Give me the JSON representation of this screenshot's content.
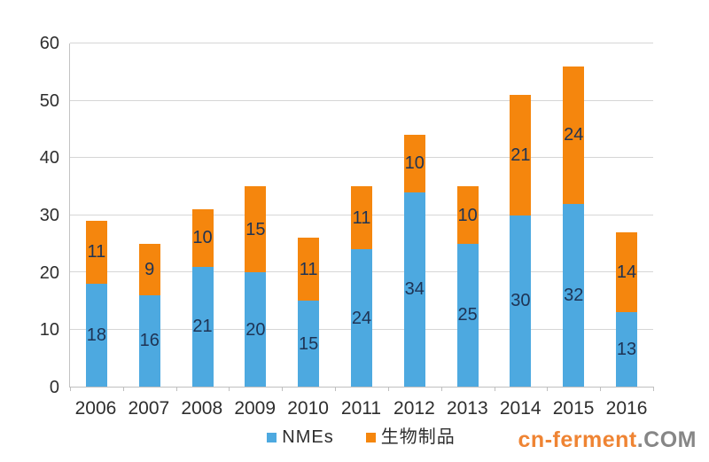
{
  "chart_data": {
    "type": "bar",
    "stacked": true,
    "title": "",
    "xlabel": "",
    "ylabel": "",
    "categories": [
      "2006",
      "2007",
      "2008",
      "2009",
      "2010",
      "2011",
      "2012",
      "2013",
      "2014",
      "2015",
      "2016"
    ],
    "series": [
      {
        "name": "NMEs",
        "color": "#4da9e0",
        "values": [
          18,
          16,
          21,
          20,
          15,
          24,
          34,
          25,
          30,
          32,
          13
        ]
      },
      {
        "name": "生物制品",
        "color": "#f5860d",
        "values": [
          11,
          9,
          10,
          15,
          11,
          11,
          10,
          10,
          21,
          24,
          14
        ]
      }
    ],
    "totals": [
      29,
      25,
      31,
      35,
      26,
      35,
      44,
      35,
      51,
      56,
      27
    ],
    "ylim": [
      0,
      60
    ],
    "yticks": [
      0,
      10,
      20,
      30,
      40,
      50,
      60
    ],
    "grid": "horizontal",
    "legend_position": "bottom",
    "data_labels": "inside-center"
  },
  "legend": {
    "items": [
      {
        "label": "NMEs",
        "color": "#4da9e0"
      },
      {
        "label": "生物制品",
        "color": "#f5860d"
      }
    ]
  },
  "watermark": {
    "brand": "cn-ferment",
    "tld": ".COM"
  },
  "colors": {
    "bar_blue": "#4da9e0",
    "bar_orange": "#f5860d",
    "value_label": "#1e3354",
    "gridline": "#d6d6d6",
    "axis": "#bfbfbf",
    "tick_label": "#2e2e2e",
    "watermark_brand": "#ef8433",
    "watermark_tld": "#868686"
  }
}
